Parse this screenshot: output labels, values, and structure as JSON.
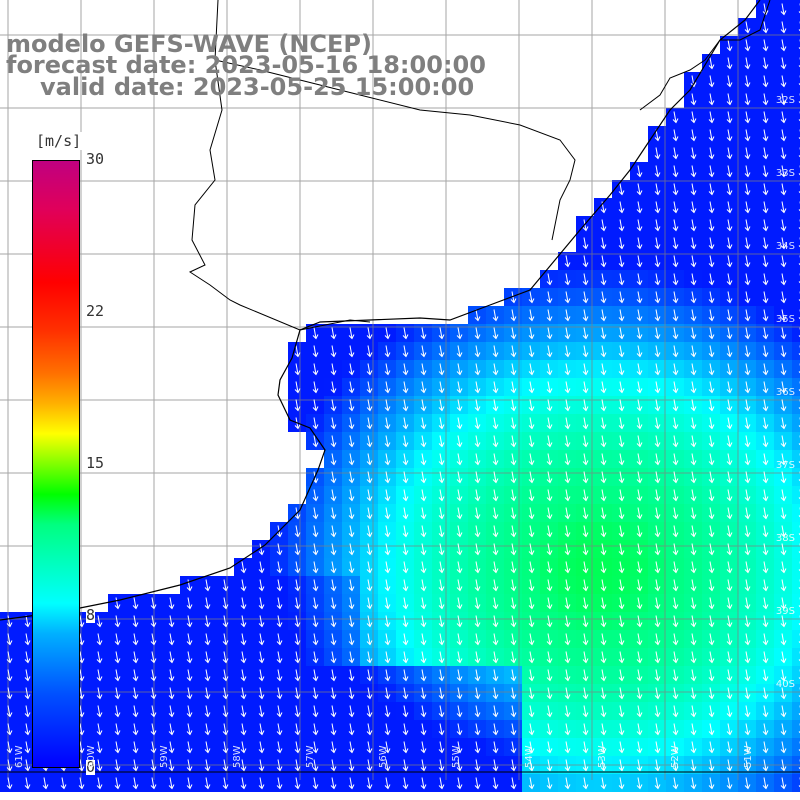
{
  "title": {
    "line1": "modelo GEFS-WAVE (NCEP)",
    "line2": "forecast date: 2023-05-16 18:00:00",
    "line3": "valid date: 2023-05-25 15:00:00"
  },
  "colorbar": {
    "unit": "[m/s]",
    "ticks": [
      "30",
      "22",
      "15",
      "8",
      "0"
    ],
    "range": [
      0,
      30
    ]
  },
  "lat_labels": [
    "32S",
    "33S",
    "34S",
    "35S",
    "36S",
    "37S",
    "38S",
    "39S",
    "40S"
  ],
  "lon_labels": [
    "61W",
    "60W",
    "59W",
    "58W",
    "57W",
    "56W",
    "55W",
    "54W",
    "53W",
    "52W",
    "51W"
  ],
  "colors": {
    "title_text": "#7f7f7f",
    "coastline": "#000000",
    "grid": "#808080",
    "arrows": "#ffffff"
  }
}
